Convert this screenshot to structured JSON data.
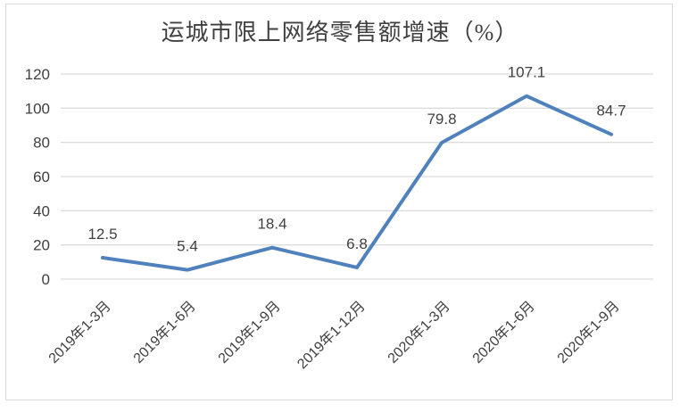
{
  "chart_data": {
    "type": "line",
    "title": "运城市限上网络零售额增速（%）",
    "categories": [
      "2019年1-3月",
      "2019年1-6月",
      "2019年1-9月",
      "2019年1-12月",
      "2020年1-3月",
      "2020年1-6月",
      "2020年1-9月"
    ],
    "values": [
      12.5,
      5.4,
      18.4,
      6.8,
      79.8,
      107.1,
      84.7
    ],
    "data_labels": [
      "12.5",
      "5.4",
      "18.4",
      "6.8",
      "79.8",
      "107.1",
      "84.7"
    ],
    "yticks": [
      0,
      20,
      40,
      60,
      80,
      100,
      120
    ],
    "ylim": [
      0,
      120
    ],
    "xlabel": "",
    "ylabel": "",
    "grid": true,
    "legend_position": "none",
    "x_label_rotation_deg": -45
  },
  "colors": {
    "line": "#4f81bd",
    "gridline": "#dcdcdc",
    "text": "#404040",
    "frame_border": "#d9d9d9",
    "background": "#ffffff"
  }
}
